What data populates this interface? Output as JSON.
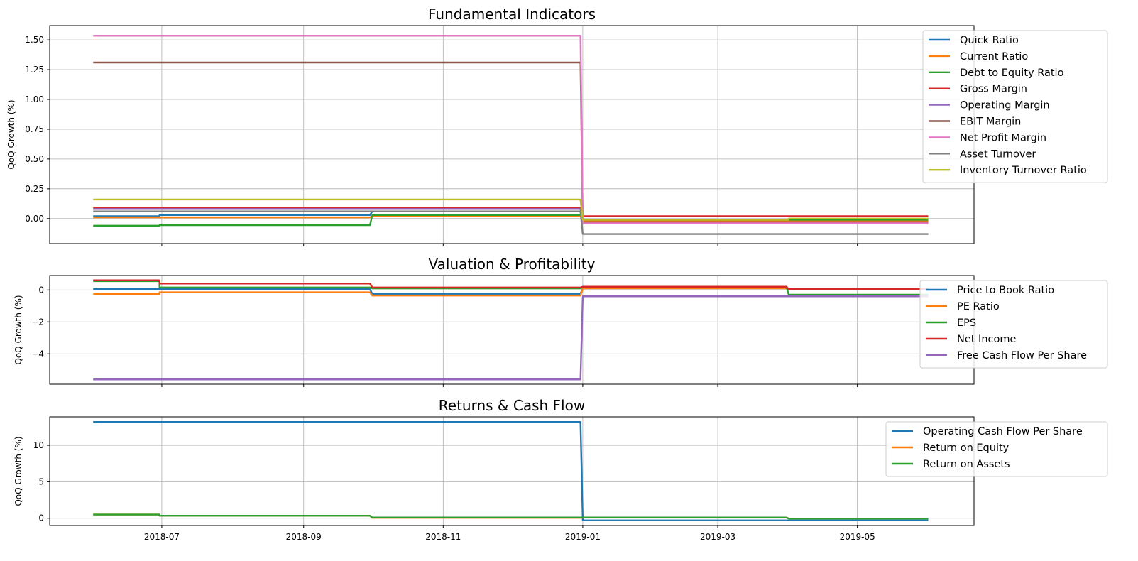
{
  "chart_data": [
    {
      "type": "line",
      "title": "Fundamental Indicators",
      "ylabel": "QoQ Growth (%)",
      "xlabel": "",
      "ylim": [
        -0.21,
        1.62
      ],
      "yticks": [
        0.0,
        0.25,
        0.5,
        0.75,
        1.0,
        1.25,
        1.5
      ],
      "ytick_labels": [
        "0.00",
        "0.25",
        "0.50",
        "0.75",
        "1.00",
        "1.25",
        "1.50"
      ],
      "grid": true,
      "legend_position": "top-right",
      "series": [
        {
          "name": "Quick Ratio",
          "color": "#1f77b4",
          "x": [
            "2018-06-01",
            "2018-06-30",
            "2018-06-30",
            "2018-09-30",
            "2018-10-01",
            "2018-12-31",
            "2019-01-01",
            "2019-06-01"
          ],
          "y": [
            0.02,
            0.02,
            0.03,
            0.03,
            0.06,
            0.06,
            -0.03,
            -0.03
          ]
        },
        {
          "name": "Current Ratio",
          "color": "#ff7f0e",
          "x": [
            "2018-06-01",
            "2018-09-30",
            "2018-10-01",
            "2018-12-31",
            "2019-01-01",
            "2019-06-01"
          ],
          "y": [
            0.01,
            0.01,
            0.02,
            0.02,
            -0.02,
            -0.02
          ]
        },
        {
          "name": "Debt to Equity Ratio",
          "color": "#2ca02c",
          "x": [
            "2018-06-01",
            "2018-06-30",
            "2018-06-30",
            "2018-09-30",
            "2018-10-01",
            "2018-12-31",
            "2019-01-01",
            "2019-06-01"
          ],
          "y": [
            -0.06,
            -0.06,
            -0.055,
            -0.055,
            0.03,
            0.03,
            -0.01,
            -0.01
          ]
        },
        {
          "name": "Gross Margin",
          "color": "#d62728",
          "x": [
            "2018-06-01",
            "2018-12-31",
            "2019-01-01",
            "2019-06-01"
          ],
          "y": [
            0.09,
            0.09,
            0.02,
            0.02
          ]
        },
        {
          "name": "Operating Margin",
          "color": "#9467bd",
          "x": [
            "2018-06-01",
            "2018-12-31",
            "2019-01-01",
            "2019-06-01"
          ],
          "y": [
            0.08,
            0.08,
            -0.04,
            -0.04
          ]
        },
        {
          "name": "EBIT Margin",
          "color": "#8c564b",
          "x": [
            "2018-06-01",
            "2018-12-31",
            "2019-01-01",
            "2019-06-01"
          ],
          "y": [
            1.31,
            1.31,
            -0.03,
            -0.03
          ]
        },
        {
          "name": "Net Profit Margin",
          "color": "#e377c2",
          "x": [
            "2018-06-01",
            "2018-12-31",
            "2019-01-01",
            "2019-06-01"
          ],
          "y": [
            1.535,
            1.535,
            -0.04,
            -0.04
          ]
        },
        {
          "name": "Asset Turnover",
          "color": "#7f7f7f",
          "x": [
            "2018-06-01",
            "2018-12-31",
            "2019-01-01",
            "2019-06-01"
          ],
          "y": [
            0.06,
            0.06,
            -0.13,
            -0.13
          ]
        },
        {
          "name": "Inventory Turnover Ratio",
          "color": "#bcbd22",
          "x": [
            "2018-06-01",
            "2018-12-31",
            "2019-01-01",
            "2019-04-01",
            "2019-04-01",
            "2019-06-01"
          ],
          "y": [
            0.16,
            0.16,
            -0.01,
            -0.01,
            0.0,
            0.0
          ]
        }
      ]
    },
    {
      "type": "line",
      "title": "Valuation & Profitability",
      "ylabel": "QoQ Growth (%)",
      "xlabel": "",
      "ylim": [
        -5.9,
        0.9
      ],
      "yticks": [
        -4,
        -2,
        0
      ],
      "ytick_labels": [
        "−4",
        "−2",
        "0"
      ],
      "grid": true,
      "legend_position": "right",
      "series": [
        {
          "name": "Price to Book Ratio",
          "color": "#1f77b4",
          "x": [
            "2018-06-01",
            "2018-09-30",
            "2018-10-01",
            "2018-12-31",
            "2019-01-01",
            "2019-03-31",
            "2019-04-01",
            "2019-06-01"
          ],
          "y": [
            0.05,
            0.05,
            -0.25,
            -0.25,
            0.1,
            0.1,
            0.05,
            0.05
          ]
        },
        {
          "name": "PE Ratio",
          "color": "#ff7f0e",
          "x": [
            "2018-06-01",
            "2018-06-30",
            "2018-06-30",
            "2018-09-30",
            "2018-10-01",
            "2018-12-31",
            "2019-01-01",
            "2019-03-31",
            "2019-04-01",
            "2019-06-01"
          ],
          "y": [
            -0.25,
            -0.25,
            -0.15,
            -0.15,
            -0.35,
            -0.35,
            0.1,
            0.1,
            0.08,
            0.08
          ]
        },
        {
          "name": "EPS",
          "color": "#2ca02c",
          "x": [
            "2018-06-01",
            "2018-06-30",
            "2018-06-30",
            "2018-09-30",
            "2018-10-01",
            "2018-12-31",
            "2019-01-01",
            "2019-03-31",
            "2019-04-01",
            "2019-06-01"
          ],
          "y": [
            0.55,
            0.55,
            0.15,
            0.15,
            0.1,
            0.1,
            0.2,
            0.2,
            -0.3,
            -0.3
          ]
        },
        {
          "name": "Net Income",
          "color": "#d62728",
          "x": [
            "2018-06-01",
            "2018-06-30",
            "2018-06-30",
            "2018-09-30",
            "2018-10-01",
            "2018-12-31",
            "2019-01-01",
            "2019-03-31",
            "2019-04-01",
            "2019-06-01"
          ],
          "y": [
            0.6,
            0.6,
            0.4,
            0.4,
            0.15,
            0.15,
            0.2,
            0.2,
            0.05,
            0.05
          ]
        },
        {
          "name": "Free Cash Flow Per Share",
          "color": "#9467bd",
          "x": [
            "2018-06-01",
            "2018-12-31",
            "2019-01-01",
            "2019-06-01"
          ],
          "y": [
            -5.6,
            -5.6,
            -0.4,
            -0.4
          ]
        }
      ]
    },
    {
      "type": "line",
      "title": "Returns & Cash Flow",
      "ylabel": "QoQ Growth (%)",
      "xlabel": "",
      "ylim": [
        -1.0,
        13.9
      ],
      "yticks": [
        0,
        5,
        10
      ],
      "ytick_labels": [
        "0",
        "5",
        "10"
      ],
      "grid": true,
      "legend_position": "top-right",
      "xtick_labels": [
        "2018-07",
        "2018-09",
        "2018-11",
        "2019-01",
        "2019-03",
        "2019-05"
      ],
      "series": [
        {
          "name": "Operating Cash Flow Per Share",
          "color": "#1f77b4",
          "x": [
            "2018-06-01",
            "2018-12-31",
            "2019-01-01",
            "2019-06-01"
          ],
          "y": [
            13.2,
            13.2,
            -0.3,
            -0.3
          ]
        },
        {
          "name": "Return on Equity",
          "color": "#ff7f0e",
          "x": [
            "2018-06-01",
            "2018-06-30",
            "2018-06-30",
            "2018-09-30",
            "2018-10-01",
            "2018-12-31",
            "2019-01-01",
            "2019-03-31",
            "2019-04-01",
            "2019-06-01"
          ],
          "y": [
            0.5,
            0.5,
            0.35,
            0.35,
            0.05,
            0.05,
            0.1,
            0.1,
            -0.05,
            -0.05
          ]
        },
        {
          "name": "Return on Assets",
          "color": "#2ca02c",
          "x": [
            "2018-06-01",
            "2018-06-30",
            "2018-06-30",
            "2018-09-30",
            "2018-10-01",
            "2018-12-31",
            "2019-01-01",
            "2019-03-31",
            "2019-04-01",
            "2019-06-01"
          ],
          "y": [
            0.5,
            0.5,
            0.35,
            0.35,
            0.1,
            0.1,
            0.1,
            0.1,
            -0.05,
            -0.05
          ]
        }
      ]
    }
  ],
  "x_axis": {
    "xlim": [
      "2018-05-13",
      "2019-06-21"
    ],
    "ticks": [
      "2018-07-01",
      "2018-09-01",
      "2018-11-01",
      "2019-01-01",
      "2019-03-01",
      "2019-05-01"
    ]
  }
}
